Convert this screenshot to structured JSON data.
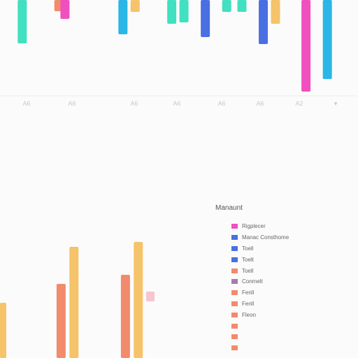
{
  "chart_data": [
    {
      "type": "bar",
      "categories": [
        "A6",
        "A6",
        "A6",
        "A6",
        "A6",
        "A6",
        "A2",
        "▾"
      ],
      "series": [
        {
          "color": "#41e0c0",
          "points": [
            {
              "x": 0.5,
              "y": 62
            },
            {
              "x": 5.4,
              "y": 34
            },
            {
              "x": 5.8,
              "y": 32
            },
            {
              "x": 7.2,
              "y": 17
            },
            {
              "x": 7.7,
              "y": 17
            }
          ]
        },
        {
          "color": "#f28a6c",
          "points": [
            {
              "x": 1.7,
              "y": 16
            }
          ]
        },
        {
          "color": "#f04fbf",
          "points": [
            {
              "x": 1.9,
              "y": 27
            },
            {
              "x": 9.8,
              "y": 131
            }
          ]
        },
        {
          "color": "#2ab6e6",
          "points": [
            {
              "x": 3.8,
              "y": 49
            },
            {
              "x": 10.5,
              "y": 113
            }
          ]
        },
        {
          "color": "#f5c36a",
          "points": [
            {
              "x": 4.2,
              "y": 17
            },
            {
              "x": 8.8,
              "y": 34
            }
          ]
        },
        {
          "color": "#4a6fe3",
          "points": [
            {
              "x": 6.5,
              "y": 53
            },
            {
              "x": 8.4,
              "y": 63
            }
          ]
        }
      ]
    },
    {
      "type": "bar",
      "series": [
        {
          "color": "#f5c36a",
          "points": [
            {
              "x": 0.0,
              "y": 79
            },
            {
              "x": 2.3,
              "y": 159
            },
            {
              "x": 4.3,
              "y": 166
            }
          ]
        },
        {
          "color": "#f28a6c",
          "points": [
            {
              "x": 1.9,
              "y": 106
            },
            {
              "x": 3.9,
              "y": 119
            }
          ]
        }
      ],
      "legend": {
        "title": "Manaunt",
        "placement": "right",
        "items": [
          {
            "label": "Rigplecer",
            "color": "#f04fbf"
          },
          {
            "label": "Manac Consthome",
            "color": "#4a6fe3"
          },
          {
            "label": "Toell",
            "color": "#4a6fe3"
          },
          {
            "label": "Toelt",
            "color": "#4a6fe3"
          },
          {
            "label": "Toell",
            "color": "#f28a6c"
          },
          {
            "label": "Conmelt",
            "color": "#a77bb0"
          },
          {
            "label": "Fenll",
            "color": "#f28a6c"
          },
          {
            "label": "Fenll",
            "color": "#f28a6c"
          },
          {
            "label": "Fleon",
            "color": "#f28a6c"
          },
          {
            "label": "",
            "color": "#f28a6c"
          },
          {
            "label": "",
            "color": "#f28a6c"
          },
          {
            "label": "",
            "color": "#f28a6c"
          }
        ]
      }
    }
  ]
}
